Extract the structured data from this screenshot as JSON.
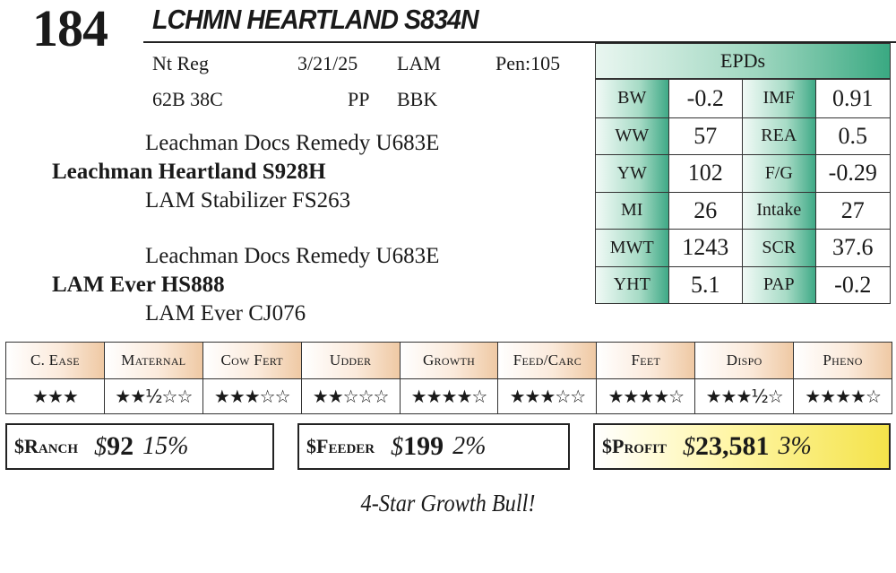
{
  "lot_number": "184",
  "animal_name": "LCHMN HEARTLAND S834N",
  "info": {
    "registration": "Nt Reg",
    "birth_date": "3/21/25",
    "breeder": "LAM",
    "pen": "Pen:105",
    "tag": "62B 38C",
    "polled": "PP",
    "color": "BBK"
  },
  "pedigree": {
    "sire_sire": "Leachman Docs Remedy U683E",
    "sire": "Leachman Heartland S928H",
    "sire_dam": "LAM Stabilizer FS263",
    "dam_sire": "Leachman Docs Remedy U683E",
    "dam": "LAM Ever HS888",
    "dam_dam": "LAM Ever CJ076"
  },
  "epds": {
    "header": "EPDs",
    "rows": [
      {
        "l1": "BW",
        "v1": "-0.2",
        "l2": "IMF",
        "v2": "0.91"
      },
      {
        "l1": "WW",
        "v1": "57",
        "l2": "REA",
        "v2": "0.5"
      },
      {
        "l1": "YW",
        "v1": "102",
        "l2": "F/G",
        "v2": "-0.29"
      },
      {
        "l1": "MI",
        "v1": "26",
        "l2": "Intake",
        "v2": "27"
      },
      {
        "l1": "MWT",
        "v1": "1243",
        "l2": "SCR",
        "v2": "37.6"
      },
      {
        "l1": "YHT",
        "v1": "5.1",
        "l2": "PAP",
        "v2": "-0.2"
      }
    ]
  },
  "ratings": {
    "headers": [
      "C. Ease",
      "Maternal",
      "Cow Fert",
      "Udder",
      "Growth",
      "Feed/Carc",
      "Feet",
      "Dispo",
      "Pheno"
    ],
    "stars": [
      "★★★",
      "★★½☆☆",
      "★★★☆☆",
      "★★☆☆☆",
      "★★★★☆",
      "★★★☆☆",
      "★★★★☆",
      "★★★½☆",
      "★★★★☆"
    ]
  },
  "indexes": {
    "ranch": {
      "label": "$Ranch",
      "value": "92",
      "pct": "15%"
    },
    "feeder": {
      "label": "$Feeder",
      "value": "199",
      "pct": "2%"
    },
    "profit": {
      "label": "$Profit",
      "value": "23,581",
      "pct": "3%"
    },
    "currency_symbol": "$"
  },
  "note": "4-Star Growth Bull!",
  "colors": {
    "epd_accent": "#3aa982",
    "rating_accent": "#efc9a4",
    "profit_accent": "#f4e34a"
  }
}
